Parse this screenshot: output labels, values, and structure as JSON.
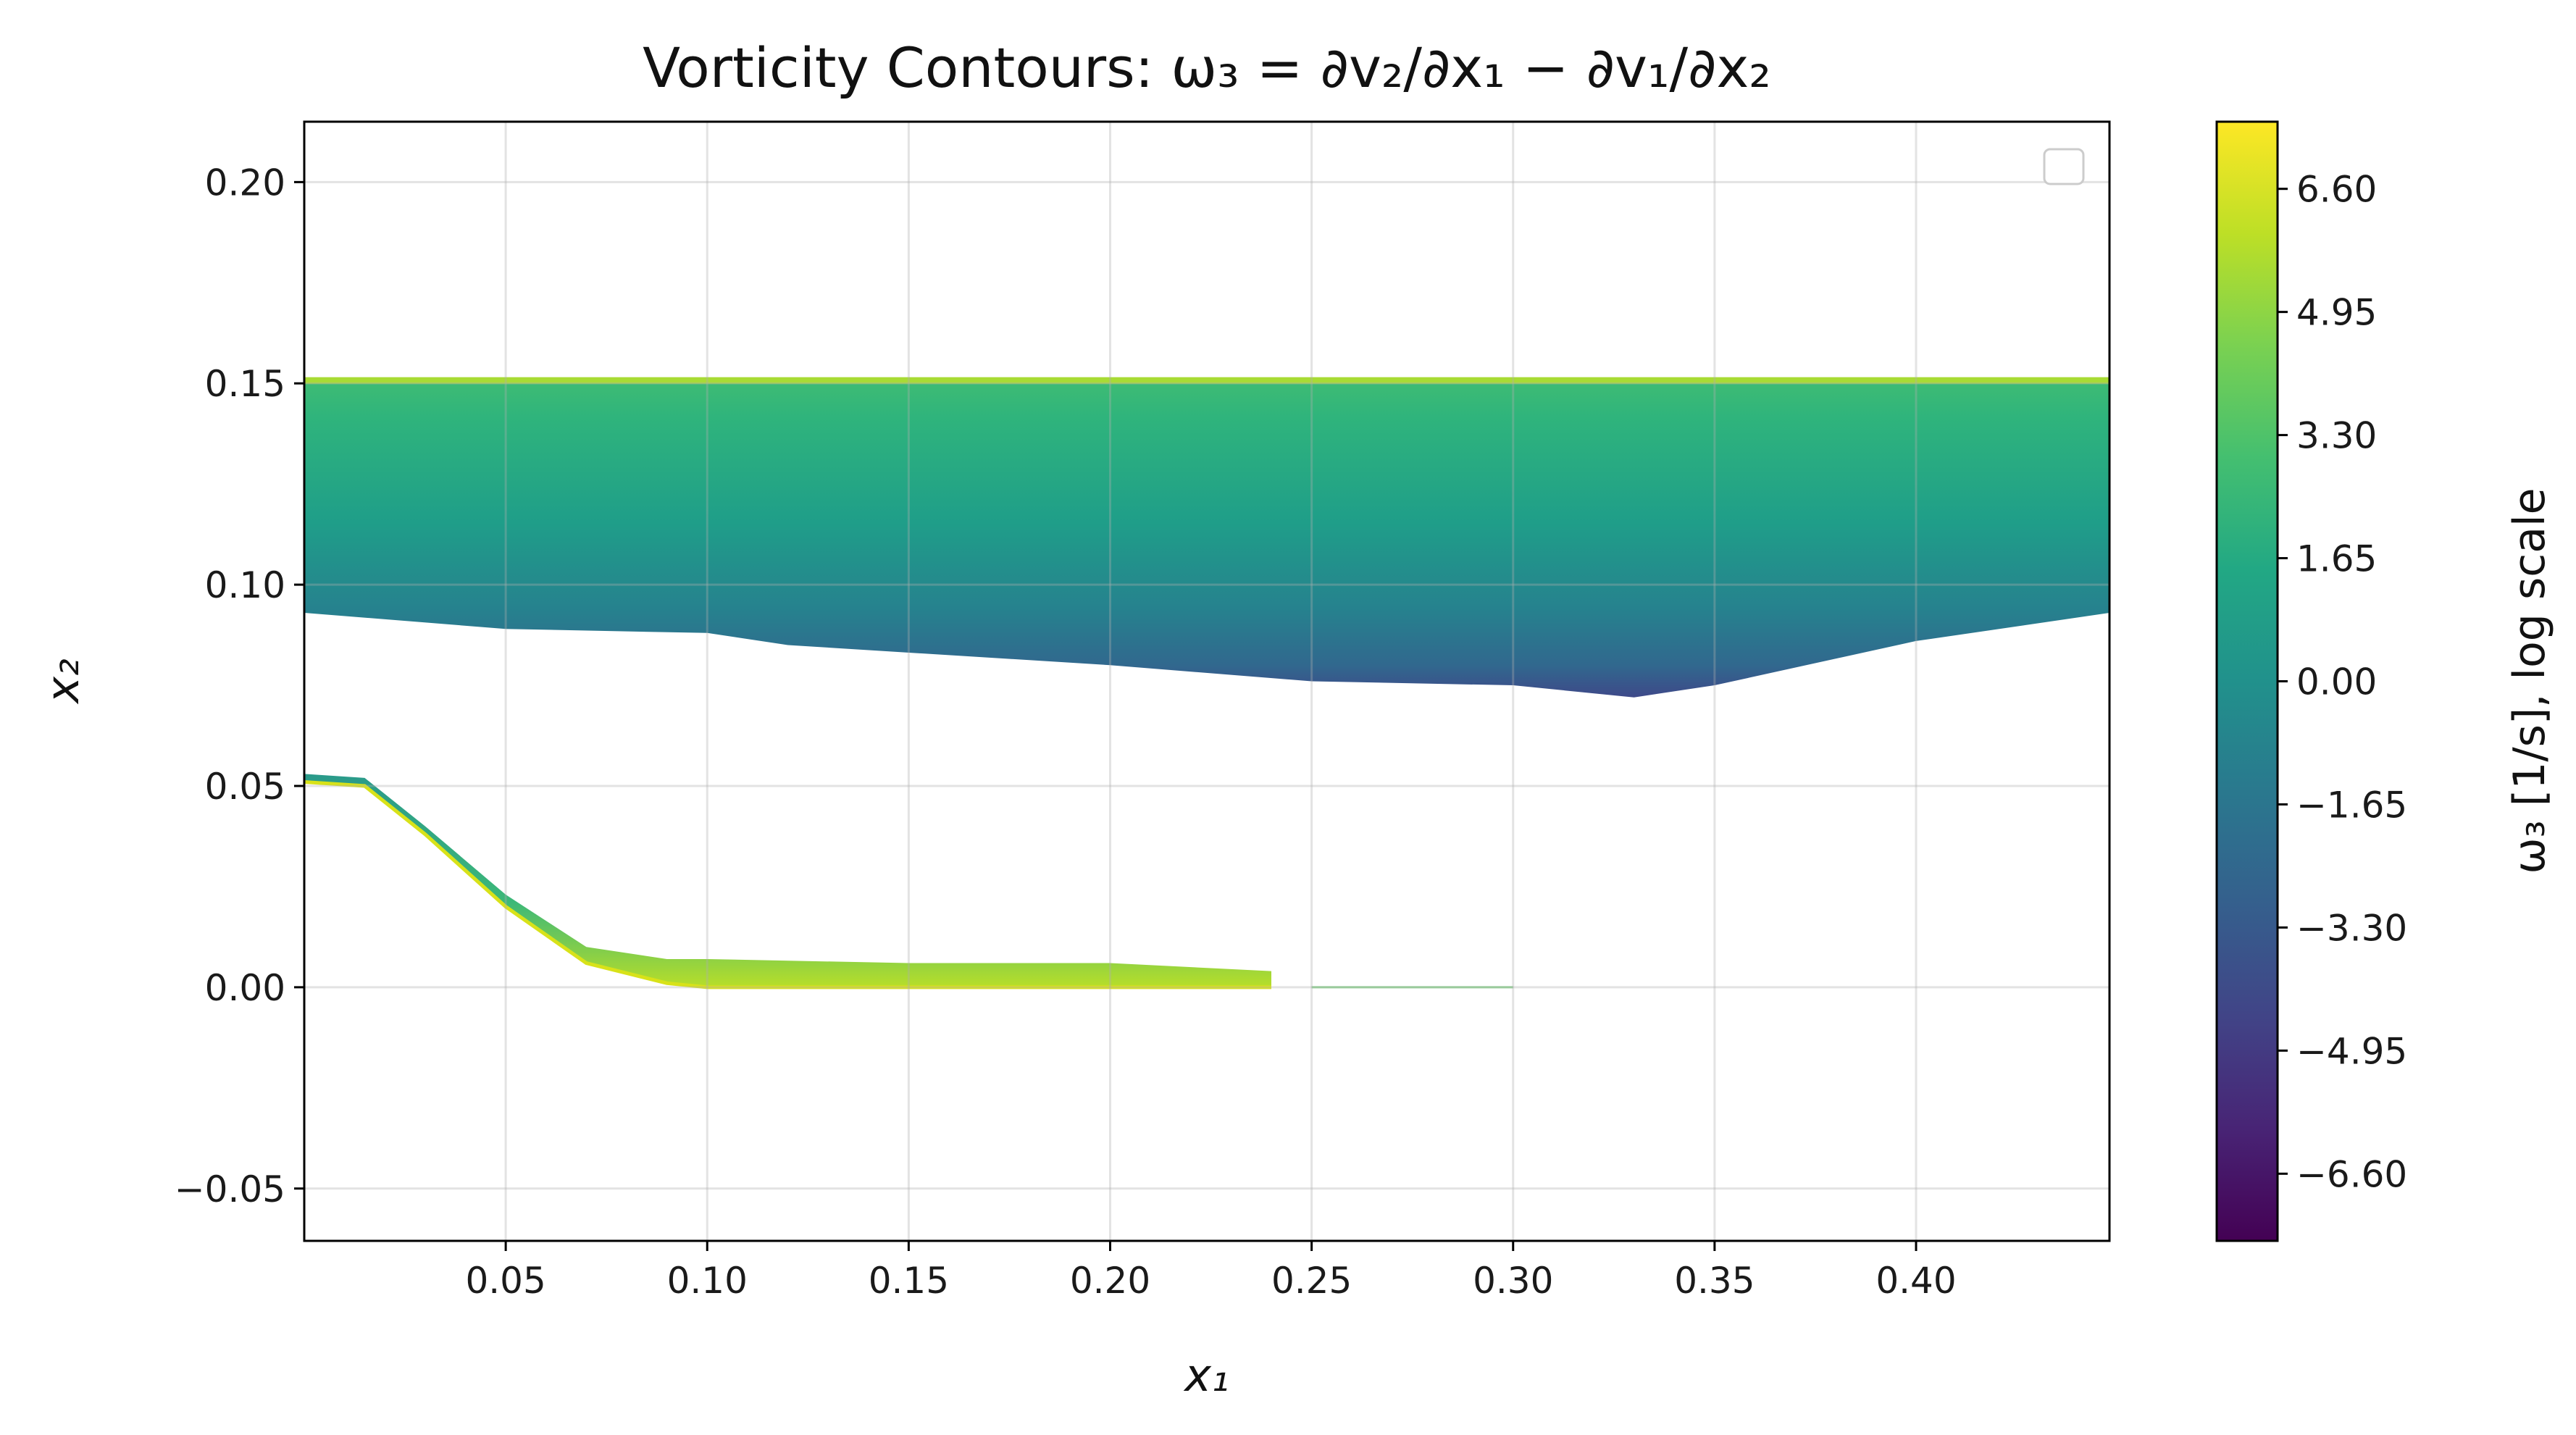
{
  "chart_data": {
    "type": "heatmap",
    "title": "Vorticity Contours: ω₃ = ∂v₂/∂x₁ − ∂v₁/∂x₂",
    "xlabel": "x₁",
    "ylabel": "x₂",
    "xlim": [
      0.0,
      0.448
    ],
    "ylim": [
      -0.063,
      0.215
    ],
    "x_ticks": [
      0.05,
      0.1,
      0.15,
      0.2,
      0.25,
      0.3,
      0.35,
      0.4
    ],
    "x_tick_labels": [
      "0.05",
      "0.10",
      "0.15",
      "0.20",
      "0.25",
      "0.30",
      "0.35",
      "0.40"
    ],
    "y_ticks": [
      -0.05,
      0.0,
      0.05,
      0.1,
      0.15,
      0.2
    ],
    "y_tick_labels": [
      "−0.05",
      "0.00",
      "0.05",
      "0.10",
      "0.15",
      "0.20"
    ],
    "grid": true,
    "legend": "top-right (empty)",
    "colormap": "viridis",
    "colorbar": {
      "label": "ω₃ [1/s], log scale",
      "range": [
        -7.5,
        7.5
      ],
      "ticks": [
        6.6,
        4.95,
        3.3,
        1.65,
        0.0,
        -1.65,
        -3.3,
        -4.95,
        -6.6
      ],
      "tick_labels": [
        "6.60",
        "4.95",
        "3.30",
        "1.65",
        "0.00",
        "−1.65",
        "−3.30",
        "−4.95",
        "−6.60"
      ]
    },
    "regions": [
      {
        "name": "upper band",
        "top_x2": 0.151,
        "bottom_edge": [
          [
            0.0,
            0.093
          ],
          [
            0.05,
            0.089
          ],
          [
            0.1,
            0.088
          ],
          [
            0.12,
            0.085
          ],
          [
            0.2,
            0.08
          ],
          [
            0.25,
            0.076
          ],
          [
            0.3,
            0.075
          ],
          [
            0.33,
            0.072
          ],
          [
            0.35,
            0.075
          ],
          [
            0.4,
            0.086
          ],
          [
            0.448,
            0.093
          ]
        ],
        "value_top": 3.0,
        "value_mid": 0.5,
        "value_bottom": -4.5
      },
      {
        "name": "lower boundary layer",
        "path_x1": [
          0.0,
          0.015,
          0.03,
          0.05,
          0.07,
          0.09,
          0.1,
          0.15,
          0.2,
          0.24
        ],
        "path_x2": [
          0.051,
          0.05,
          0.038,
          0.02,
          0.006,
          0.001,
          0.0,
          0.0,
          0.0,
          0.0
        ],
        "thickness_x2": [
          0.002,
          0.002,
          0.002,
          0.003,
          0.004,
          0.006,
          0.007,
          0.006,
          0.006,
          0.004
        ],
        "value_wall": 6.0,
        "value_interior": 1.5
      },
      {
        "name": "wake line",
        "x1_range": [
          0.25,
          0.3
        ],
        "x2": 0.0,
        "value": 1.5
      }
    ]
  }
}
